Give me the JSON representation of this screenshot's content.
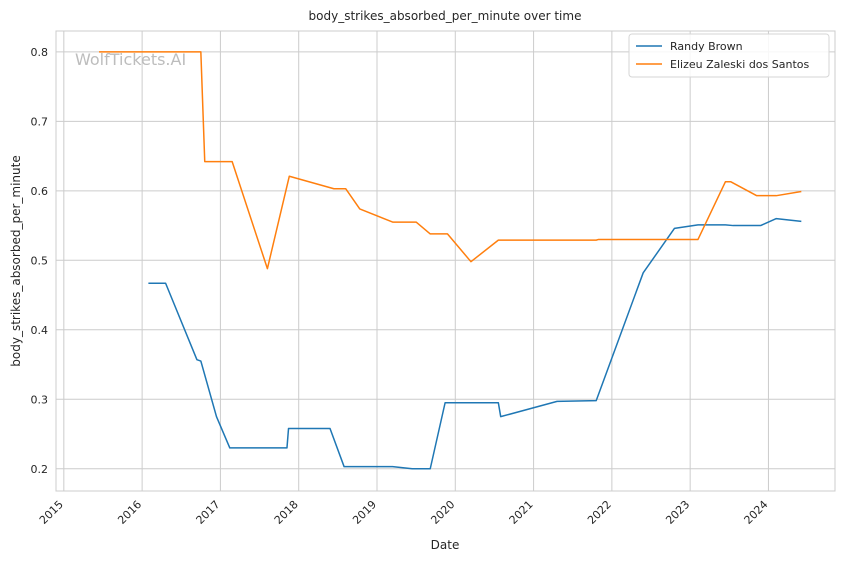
{
  "chart_data": {
    "type": "line",
    "title": "body_strikes_absorbed_per_minute over time",
    "xlabel": "Date",
    "ylabel": "body_strikes_absorbed_per_minute",
    "watermark": "WolfTickets.AI",
    "xlim": [
      2014.9,
      2024.85
    ],
    "ylim": [
      0.168,
      0.83
    ],
    "x_ticks": [
      2015,
      2016,
      2017,
      2018,
      2019,
      2020,
      2021,
      2022,
      2023,
      2024
    ],
    "x_tick_labels": [
      "2015",
      "2016",
      "2017",
      "2018",
      "2019",
      "2020",
      "2021",
      "2022",
      "2023",
      "2024"
    ],
    "y_ticks": [
      0.2,
      0.3,
      0.4,
      0.5,
      0.6,
      0.7,
      0.8
    ],
    "y_tick_labels": [
      "0.2",
      "0.3",
      "0.4",
      "0.5",
      "0.6",
      "0.7",
      "0.8"
    ],
    "grid": true,
    "legend_position": "top-right",
    "series": [
      {
        "name": "Randy Brown",
        "color": "#1f77b4",
        "points": [
          [
            2016.08,
            0.467
          ],
          [
            2016.3,
            0.467
          ],
          [
            2016.7,
            0.357
          ],
          [
            2016.75,
            0.355
          ],
          [
            2016.95,
            0.275
          ],
          [
            2017.12,
            0.23
          ],
          [
            2017.85,
            0.23
          ],
          [
            2017.87,
            0.258
          ],
          [
            2018.4,
            0.258
          ],
          [
            2018.58,
            0.203
          ],
          [
            2019.2,
            0.203
          ],
          [
            2019.45,
            0.2
          ],
          [
            2019.68,
            0.2
          ],
          [
            2019.87,
            0.295
          ],
          [
            2020.55,
            0.295
          ],
          [
            2020.58,
            0.275
          ],
          [
            2021.3,
            0.297
          ],
          [
            2021.8,
            0.298
          ],
          [
            2022.4,
            0.482
          ],
          [
            2022.8,
            0.546
          ],
          [
            2023.1,
            0.551
          ],
          [
            2023.45,
            0.551
          ],
          [
            2023.55,
            0.55
          ],
          [
            2023.9,
            0.55
          ],
          [
            2024.1,
            0.56
          ],
          [
            2024.42,
            0.556
          ]
        ]
      },
      {
        "name": "Elizeu Zaleski dos Santos",
        "color": "#ff7f0e",
        "points": [
          [
            2015.45,
            0.8
          ],
          [
            2016.75,
            0.8
          ],
          [
            2016.8,
            0.642
          ],
          [
            2017.15,
            0.642
          ],
          [
            2017.6,
            0.488
          ],
          [
            2017.88,
            0.621
          ],
          [
            2018.45,
            0.603
          ],
          [
            2018.6,
            0.603
          ],
          [
            2018.78,
            0.574
          ],
          [
            2019.2,
            0.555
          ],
          [
            2019.5,
            0.555
          ],
          [
            2019.68,
            0.538
          ],
          [
            2019.9,
            0.538
          ],
          [
            2020.2,
            0.498
          ],
          [
            2020.55,
            0.529
          ],
          [
            2021.8,
            0.529
          ],
          [
            2021.83,
            0.53
          ],
          [
            2023.1,
            0.53
          ],
          [
            2023.45,
            0.613
          ],
          [
            2023.52,
            0.613
          ],
          [
            2023.85,
            0.593
          ],
          [
            2024.1,
            0.593
          ],
          [
            2024.42,
            0.599
          ]
        ]
      }
    ]
  }
}
